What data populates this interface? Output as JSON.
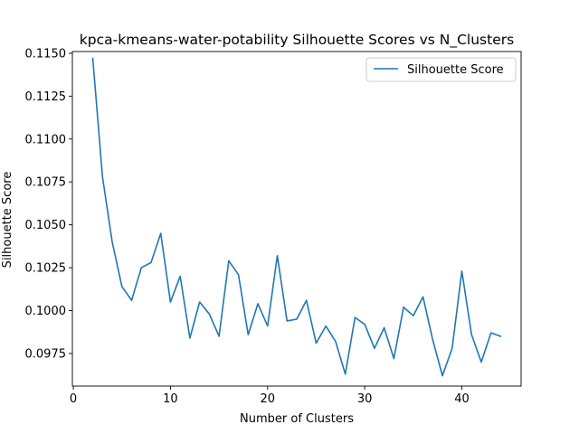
{
  "chart_data": {
    "type": "line",
    "title": "kpca-kmeans-water-potability Silhouette Scores vs N_Clusters",
    "xlabel": "Number of Clusters",
    "ylabel": "Silhouette Score",
    "xlim": [
      -0.1,
      46.1
    ],
    "ylim": [
      0.0956,
      0.1151
    ],
    "xticks": [
      0,
      10,
      20,
      30,
      40
    ],
    "yticks": [
      0.0975,
      0.1,
      0.1025,
      0.105,
      0.1075,
      0.11,
      0.1125,
      0.115
    ],
    "ytick_labels": [
      "0.0975",
      "0.1000",
      "0.1025",
      "0.1050",
      "0.1075",
      "0.1100",
      "0.1125",
      "0.1150"
    ],
    "legend_position": "top-right",
    "grid": false,
    "series": [
      {
        "name": "Silhouette Score",
        "color": "#1f77b4",
        "x": [
          2,
          3,
          4,
          5,
          6,
          7,
          8,
          9,
          10,
          11,
          12,
          13,
          14,
          15,
          16,
          17,
          18,
          19,
          20,
          21,
          22,
          23,
          24,
          25,
          26,
          27,
          28,
          29,
          30,
          31,
          32,
          33,
          34,
          35,
          36,
          37,
          38,
          39,
          40,
          41,
          42,
          43,
          44
        ],
        "y": [
          0.1147,
          0.1078,
          0.104,
          0.1014,
          0.1006,
          0.1025,
          0.1028,
          0.1045,
          0.1005,
          0.102,
          0.0984,
          0.1005,
          0.0998,
          0.0985,
          0.1029,
          0.1021,
          0.0986,
          0.1004,
          0.0991,
          0.1032,
          0.0994,
          0.0995,
          0.1006,
          0.0981,
          0.0991,
          0.0982,
          0.0963,
          0.0996,
          0.0992,
          0.0978,
          0.099,
          0.0972,
          0.1002,
          0.0997,
          0.1008,
          0.0983,
          0.0962,
          0.0978,
          0.1023,
          0.0986,
          0.097,
          0.0987,
          0.0985
        ]
      }
    ]
  }
}
